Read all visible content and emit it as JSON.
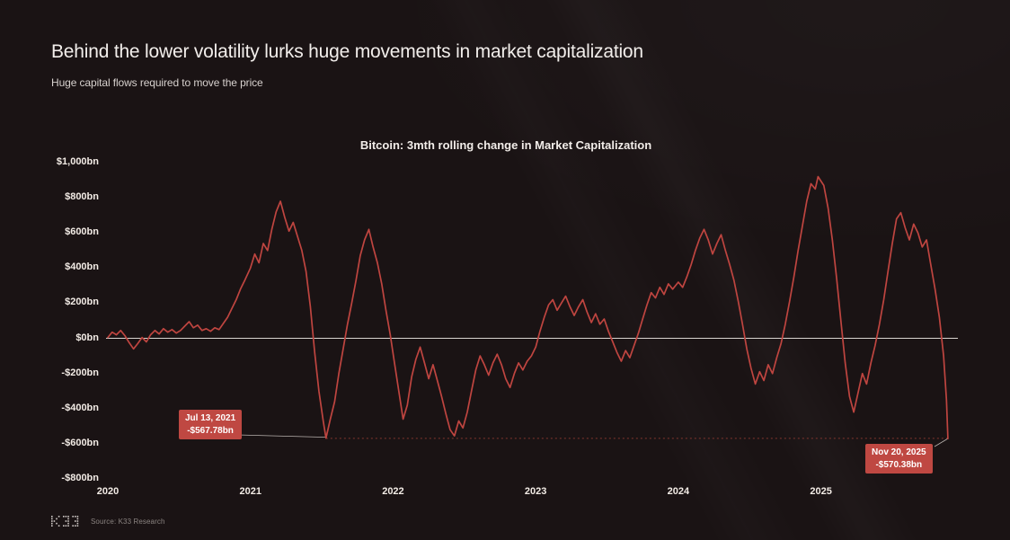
{
  "page": {
    "title": "Behind the lower volatility lurks huge movements in market capitalization",
    "subtitle": "Huge capital flows required to move the price",
    "source": "Source: K33 Research"
  },
  "chart_data": {
    "type": "line",
    "title": "Bitcoin: 3mth rolling change in Market Capitalization",
    "background": "#1a1314",
    "line_color": "#bf4540",
    "zero_line_color": "#d9d4d0",
    "xlim": [
      2020,
      2025.96
    ],
    "ylim": [
      -800,
      1000
    ],
    "grid": "off",
    "legend": "none",
    "y_ticks": [
      {
        "label": "$1,000bn",
        "value": 1000
      },
      {
        "label": "$800bn",
        "value": 800
      },
      {
        "label": "$600bn",
        "value": 600
      },
      {
        "label": "$400bn",
        "value": 400
      },
      {
        "label": "$200bn",
        "value": 200
      },
      {
        "label": "$0bn",
        "value": 0
      },
      {
        "label": "-$200bn",
        "value": -200
      },
      {
        "label": "-$400bn",
        "value": -400
      },
      {
        "label": "-$600bn",
        "value": -600
      },
      {
        "label": "-$800bn",
        "value": -800
      }
    ],
    "x_ticks": [
      {
        "label": "2020",
        "value": 2020
      },
      {
        "label": "2021",
        "value": 2021
      },
      {
        "label": "2022",
        "value": 2022
      },
      {
        "label": "2023",
        "value": 2023
      },
      {
        "label": "2024",
        "value": 2024
      },
      {
        "label": "2025",
        "value": 2025
      }
    ],
    "dotted_line": {
      "value": -569,
      "from": 2021.53,
      "to": 2025.89,
      "color": "#83362f"
    },
    "annotations": [
      {
        "date": "Jul 13, 2021",
        "value_label": "-$567.78bn",
        "x": 2021.53,
        "y": -567.78
      },
      {
        "date": "Nov 20, 2025",
        "value_label": "-$570.38bn",
        "x": 2025.89,
        "y": -570.38
      }
    ],
    "series": [
      {
        "name": "Bitcoin 3mth rolling change in market capitalization ($bn)",
        "points": [
          [
            2020.0,
            5
          ],
          [
            2020.03,
            35
          ],
          [
            2020.06,
            20
          ],
          [
            2020.09,
            45
          ],
          [
            2020.12,
            15
          ],
          [
            2020.15,
            -25
          ],
          [
            2020.18,
            -60
          ],
          [
            2020.21,
            -30
          ],
          [
            2020.24,
            5
          ],
          [
            2020.27,
            -20
          ],
          [
            2020.3,
            20
          ],
          [
            2020.33,
            45
          ],
          [
            2020.36,
            25
          ],
          [
            2020.39,
            55
          ],
          [
            2020.42,
            35
          ],
          [
            2020.45,
            50
          ],
          [
            2020.48,
            30
          ],
          [
            2020.51,
            45
          ],
          [
            2020.54,
            70
          ],
          [
            2020.57,
            95
          ],
          [
            2020.6,
            60
          ],
          [
            2020.63,
            75
          ],
          [
            2020.66,
            45
          ],
          [
            2020.69,
            55
          ],
          [
            2020.72,
            40
          ],
          [
            2020.75,
            60
          ],
          [
            2020.78,
            50
          ],
          [
            2020.81,
            85
          ],
          [
            2020.84,
            120
          ],
          [
            2020.87,
            170
          ],
          [
            2020.9,
            220
          ],
          [
            2020.93,
            280
          ],
          [
            2020.96,
            330
          ],
          [
            2021.0,
            400
          ],
          [
            2021.03,
            480
          ],
          [
            2021.06,
            430
          ],
          [
            2021.09,
            540
          ],
          [
            2021.12,
            500
          ],
          [
            2021.15,
            620
          ],
          [
            2021.18,
            720
          ],
          [
            2021.21,
            780
          ],
          [
            2021.24,
            690
          ],
          [
            2021.27,
            610
          ],
          [
            2021.3,
            660
          ],
          [
            2021.33,
            580
          ],
          [
            2021.36,
            500
          ],
          [
            2021.39,
            380
          ],
          [
            2021.42,
            180
          ],
          [
            2021.45,
            -80
          ],
          [
            2021.48,
            -300
          ],
          [
            2021.51,
            -470
          ],
          [
            2021.53,
            -567.78
          ],
          [
            2021.56,
            -460
          ],
          [
            2021.59,
            -360
          ],
          [
            2021.62,
            -200
          ],
          [
            2021.65,
            -60
          ],
          [
            2021.68,
            80
          ],
          [
            2021.71,
            200
          ],
          [
            2021.74,
            330
          ],
          [
            2021.77,
            470
          ],
          [
            2021.8,
            560
          ],
          [
            2021.83,
            620
          ],
          [
            2021.86,
            520
          ],
          [
            2021.89,
            430
          ],
          [
            2021.92,
            310
          ],
          [
            2021.95,
            160
          ],
          [
            2021.98,
            20
          ],
          [
            2022.01,
            -140
          ],
          [
            2022.04,
            -300
          ],
          [
            2022.07,
            -460
          ],
          [
            2022.1,
            -380
          ],
          [
            2022.13,
            -220
          ],
          [
            2022.16,
            -120
          ],
          [
            2022.19,
            -50
          ],
          [
            2022.22,
            -140
          ],
          [
            2022.25,
            -230
          ],
          [
            2022.28,
            -150
          ],
          [
            2022.31,
            -240
          ],
          [
            2022.34,
            -330
          ],
          [
            2022.37,
            -430
          ],
          [
            2022.4,
            -520
          ],
          [
            2022.43,
            -555
          ],
          [
            2022.46,
            -470
          ],
          [
            2022.49,
            -510
          ],
          [
            2022.52,
            -420
          ],
          [
            2022.55,
            -300
          ],
          [
            2022.58,
            -180
          ],
          [
            2022.61,
            -100
          ],
          [
            2022.64,
            -150
          ],
          [
            2022.67,
            -210
          ],
          [
            2022.7,
            -140
          ],
          [
            2022.73,
            -90
          ],
          [
            2022.76,
            -150
          ],
          [
            2022.79,
            -230
          ],
          [
            2022.82,
            -280
          ],
          [
            2022.85,
            -200
          ],
          [
            2022.88,
            -140
          ],
          [
            2022.91,
            -180
          ],
          [
            2022.94,
            -130
          ],
          [
            2022.97,
            -100
          ],
          [
            2023.0,
            -50
          ],
          [
            2023.03,
            40
          ],
          [
            2023.06,
            120
          ],
          [
            2023.09,
            190
          ],
          [
            2023.12,
            220
          ],
          [
            2023.15,
            160
          ],
          [
            2023.18,
            200
          ],
          [
            2023.21,
            240
          ],
          [
            2023.24,
            180
          ],
          [
            2023.27,
            130
          ],
          [
            2023.3,
            180
          ],
          [
            2023.33,
            220
          ],
          [
            2023.36,
            150
          ],
          [
            2023.39,
            90
          ],
          [
            2023.42,
            140
          ],
          [
            2023.45,
            80
          ],
          [
            2023.48,
            110
          ],
          [
            2023.51,
            40
          ],
          [
            2023.54,
            -20
          ],
          [
            2023.57,
            -80
          ],
          [
            2023.6,
            -130
          ],
          [
            2023.63,
            -70
          ],
          [
            2023.66,
            -110
          ],
          [
            2023.69,
            -40
          ],
          [
            2023.72,
            30
          ],
          [
            2023.75,
            110
          ],
          [
            2023.78,
            190
          ],
          [
            2023.81,
            260
          ],
          [
            2023.84,
            230
          ],
          [
            2023.87,
            290
          ],
          [
            2023.9,
            250
          ],
          [
            2023.93,
            310
          ],
          [
            2023.96,
            280
          ],
          [
            2024.0,
            320
          ],
          [
            2024.03,
            290
          ],
          [
            2024.06,
            350
          ],
          [
            2024.09,
            420
          ],
          [
            2024.12,
            500
          ],
          [
            2024.15,
            570
          ],
          [
            2024.18,
            620
          ],
          [
            2024.21,
            560
          ],
          [
            2024.24,
            480
          ],
          [
            2024.27,
            540
          ],
          [
            2024.3,
            590
          ],
          [
            2024.33,
            500
          ],
          [
            2024.36,
            420
          ],
          [
            2024.39,
            330
          ],
          [
            2024.42,
            210
          ],
          [
            2024.45,
            80
          ],
          [
            2024.48,
            -60
          ],
          [
            2024.51,
            -170
          ],
          [
            2024.54,
            -260
          ],
          [
            2024.57,
            -190
          ],
          [
            2024.6,
            -240
          ],
          [
            2024.63,
            -150
          ],
          [
            2024.66,
            -200
          ],
          [
            2024.69,
            -110
          ],
          [
            2024.72,
            -30
          ],
          [
            2024.75,
            80
          ],
          [
            2024.78,
            210
          ],
          [
            2024.81,
            350
          ],
          [
            2024.84,
            500
          ],
          [
            2024.87,
            640
          ],
          [
            2024.9,
            780
          ],
          [
            2024.93,
            880
          ],
          [
            2024.96,
            850
          ],
          [
            2024.98,
            920
          ],
          [
            2025.02,
            870
          ],
          [
            2025.05,
            740
          ],
          [
            2025.08,
            560
          ],
          [
            2025.11,
            340
          ],
          [
            2025.14,
            100
          ],
          [
            2025.17,
            -140
          ],
          [
            2025.2,
            -330
          ],
          [
            2025.23,
            -420
          ],
          [
            2025.26,
            -310
          ],
          [
            2025.29,
            -200
          ],
          [
            2025.32,
            -260
          ],
          [
            2025.35,
            -140
          ],
          [
            2025.38,
            -40
          ],
          [
            2025.41,
            80
          ],
          [
            2025.44,
            220
          ],
          [
            2025.47,
            380
          ],
          [
            2025.5,
            540
          ],
          [
            2025.53,
            680
          ],
          [
            2025.56,
            715
          ],
          [
            2025.59,
            630
          ],
          [
            2025.62,
            560
          ],
          [
            2025.65,
            650
          ],
          [
            2025.68,
            600
          ],
          [
            2025.71,
            520
          ],
          [
            2025.74,
            560
          ],
          [
            2025.77,
            420
          ],
          [
            2025.8,
            280
          ],
          [
            2025.83,
            120
          ],
          [
            2025.86,
            -100
          ],
          [
            2025.88,
            -350
          ],
          [
            2025.89,
            -570.38
          ]
        ]
      }
    ]
  }
}
